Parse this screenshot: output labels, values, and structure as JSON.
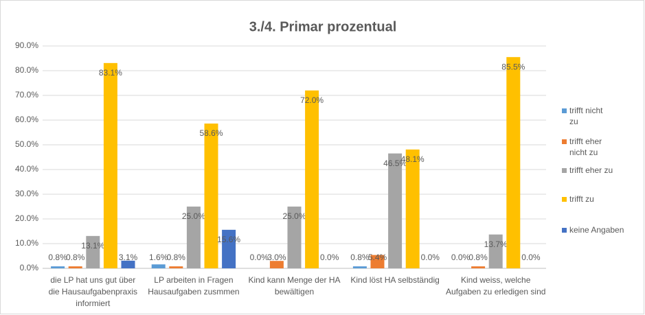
{
  "chart_data": {
    "type": "bar",
    "title": "3./4. Primar prozentual",
    "categories": [
      "die LP hat uns gut über die Hausaufgabenpraxis informiert",
      "LP arbeiten in Fragen Hausaufgaben zusmmen",
      "Kind kann Menge der HA bewältigen",
      "Kind löst HA selbständig",
      "Kind weiss, welche Aufgaben zu erledigen sind"
    ],
    "series": [
      {
        "name": "trifft nicht zu",
        "color": "#5b9bd5",
        "values": [
          0.8,
          1.6,
          0.0,
          0.8,
          0.0
        ],
        "value_labels": [
          "0.8%",
          "1.6%",
          "0.0%",
          "0.8%",
          "0.0%"
        ]
      },
      {
        "name": "trifft eher nicht zu",
        "color": "#ed7d31",
        "values": [
          0.8,
          0.8,
          3.0,
          5.4,
          0.8
        ],
        "value_labels": [
          "0.8%",
          "0.8%",
          "3.0%",
          "5.4%",
          "0.8%"
        ]
      },
      {
        "name": "trifft eher zu",
        "color": "#a5a5a5",
        "values": [
          13.1,
          25.0,
          25.0,
          46.5,
          13.7
        ],
        "value_labels": [
          "13.1%",
          "25.0%",
          "25.0%",
          "46.5%",
          "13.7%"
        ]
      },
      {
        "name": "trifft zu",
        "color": "#ffc000",
        "values": [
          83.1,
          58.6,
          72.0,
          48.1,
          85.5
        ],
        "value_labels": [
          "83.1%",
          "58.6%",
          "72.0%",
          "48.1%",
          "85.5%"
        ]
      },
      {
        "name": "keine Angaben",
        "color": "#4472c4",
        "values": [
          3.1,
          15.6,
          0.0,
          0.0,
          0.0
        ],
        "value_labels": [
          "3.1%",
          "15.6%",
          "0.0%",
          "0.0%",
          "0.0%"
        ]
      }
    ],
    "ylim": [
      0,
      90
    ],
    "yticks": [
      {
        "value": 0,
        "label": "0.0%"
      },
      {
        "value": 10,
        "label": "10.0%"
      },
      {
        "value": 20,
        "label": "20.0%"
      },
      {
        "value": 30,
        "label": "30.0%"
      },
      {
        "value": 40,
        "label": "40.0%"
      },
      {
        "value": 50,
        "label": "50.0%"
      },
      {
        "value": 60,
        "label": "60.0%"
      },
      {
        "value": 70,
        "label": "70.0%"
      },
      {
        "value": 80,
        "label": "80.0%"
      },
      {
        "value": 90,
        "label": "90.0%"
      }
    ],
    "grid": true,
    "legend": "right"
  }
}
